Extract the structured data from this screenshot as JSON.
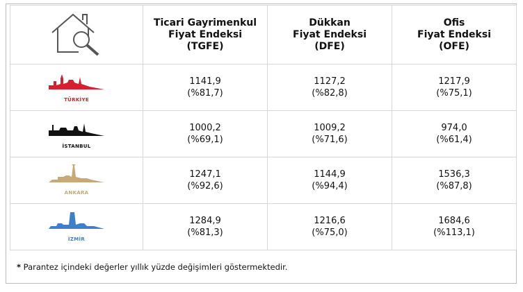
{
  "table": {
    "headers": [
      [
        "Ticari Gayrimenkul",
        "Fiyat Endeksi",
        "(TGFE)"
      ],
      [
        "Dükkan",
        "Fiyat Endeksi",
        "(DFE)"
      ],
      [
        "Ofis",
        "Fiyat Endeksi",
        "(OFE)"
      ]
    ],
    "rows": [
      {
        "city": "TÜRKİYE",
        "cells": [
          [
            "1141,9",
            "(%81,7)"
          ],
          [
            "1127,2",
            "(%82,8)"
          ],
          [
            "1217,9",
            "(%75,1)"
          ]
        ]
      },
      {
        "city": "İSTANBUL",
        "cells": [
          [
            "1000,2",
            "(%69,1)"
          ],
          [
            "1009,2",
            "(%71,6)"
          ],
          [
            "974,0",
            "(%61,4)"
          ]
        ]
      },
      {
        "city": "ANKARA",
        "cells": [
          [
            "1247,1",
            "(%92,6)"
          ],
          [
            "1144,9",
            "(%94,4)"
          ],
          [
            "1536,3",
            "(%87,8)"
          ]
        ]
      },
      {
        "city": "İZMİR",
        "cells": [
          [
            "1284,9",
            "(%81,3)"
          ],
          [
            "1216,6",
            "(%75,0)"
          ],
          [
            "1684,6",
            "(%113,1)"
          ]
        ]
      }
    ]
  },
  "footnote": {
    "mark": "*",
    "text": "Parantez içindeki değerler yıllık yüzde değişimleri göstermektedir."
  }
}
